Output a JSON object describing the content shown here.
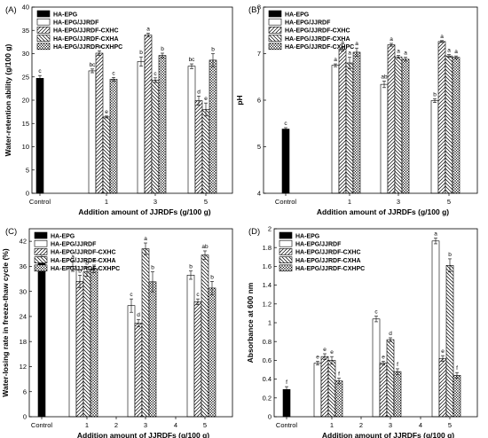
{
  "figure": {
    "panels": [
      {
        "label": "(A)"
      },
      {
        "label": "(B)"
      },
      {
        "label": "(C)"
      },
      {
        "label": "(D)"
      }
    ]
  },
  "chart_data": [
    {
      "panel": "(A)",
      "type": "bar",
      "xlabel": "Addition amount of JJRDFs (g/100 g)",
      "ylabel": "Water-retention ability (g/100 g)",
      "ylim": [
        0,
        40
      ],
      "yticks": [
        0,
        5,
        10,
        15,
        20,
        25,
        30,
        35,
        40
      ],
      "x_ticks": [
        "Control",
        "1",
        "3",
        "5"
      ],
      "legend_position": "top-left",
      "colors": {
        "HA-EPG": "#000000",
        "HA-EPG/JJRDF": "#ffffff"
      },
      "series": [
        {
          "name": "HA-EPG",
          "pattern": "solid",
          "points": [
            {
              "x": "Control",
              "value": 24.7,
              "error": 0.6,
              "label": "c"
            }
          ]
        },
        {
          "name": "HA-EPG/JJRDF",
          "pattern": "empty",
          "points": [
            {
              "x": "1",
              "value": 26.3,
              "error": 0.4,
              "label": "bc"
            },
            {
              "x": "3",
              "value": 28.3,
              "error": 1.0,
              "label": "b"
            },
            {
              "x": "5",
              "value": 27.3,
              "error": 0.5,
              "label": "bc"
            }
          ]
        },
        {
          "name": "HA-EPG/JJRDF-CXHC",
          "pattern": "diag",
          "points": [
            {
              "x": "1",
              "value": 30.1,
              "error": 0.5,
              "label": "b"
            },
            {
              "x": "3",
              "value": 34.0,
              "error": 0.4,
              "label": "a"
            },
            {
              "x": "5",
              "value": 19.9,
              "error": 1.0,
              "label": "d"
            }
          ]
        },
        {
          "name": "HA-EPG/JJRDF-CXHA",
          "pattern": "antidiag",
          "points": [
            {
              "x": "1",
              "value": 16.4,
              "error": 0.2,
              "label": "e"
            },
            {
              "x": "3",
              "value": 24.3,
              "error": 0.5,
              "label": "c"
            },
            {
              "x": "5",
              "value": 18.0,
              "error": 1.4,
              "label": "e"
            }
          ]
        },
        {
          "name": "HA-EPG/JJRDF-CXHPC",
          "pattern": "cross",
          "points": [
            {
              "x": "1",
              "value": 24.5,
              "error": 0.4,
              "label": "c"
            },
            {
              "x": "3",
              "value": 29.6,
              "error": 0.5,
              "label": "b"
            },
            {
              "x": "5",
              "value": 28.6,
              "error": 1.4,
              "label": "b"
            }
          ]
        }
      ]
    },
    {
      "panel": "(B)",
      "type": "bar",
      "xlabel": "Addition amount of JJRDFs (g/100 g)",
      "ylabel": "pH",
      "ylim": [
        4,
        8
      ],
      "yticks": [
        4,
        5,
        6,
        7,
        8
      ],
      "x_ticks": [
        "Control",
        "1",
        "3",
        "5"
      ],
      "legend_position": "top-left",
      "series": [
        {
          "name": "HA-EPG",
          "pattern": "solid",
          "points": [
            {
              "x": "Control",
              "value": 5.38,
              "error": 0.03,
              "label": "c"
            }
          ]
        },
        {
          "name": "HA-EPG/JJRDF",
          "pattern": "empty",
          "points": [
            {
              "x": "1",
              "value": 6.75,
              "error": 0.03,
              "label": "a"
            },
            {
              "x": "3",
              "value": 6.34,
              "error": 0.07,
              "label": "ab"
            },
            {
              "x": "5",
              "value": 5.99,
              "error": 0.04,
              "label": "b"
            }
          ]
        },
        {
          "name": "HA-EPG/JJRDF-CXHC",
          "pattern": "diag",
          "points": [
            {
              "x": "1",
              "value": 7.1,
              "error": 0.04,
              "label": "a"
            },
            {
              "x": "3",
              "value": 7.19,
              "error": 0.03,
              "label": "a"
            },
            {
              "x": "5",
              "value": 7.26,
              "error": 0.02,
              "label": "a"
            }
          ]
        },
        {
          "name": "HA-EPG/JJRDF-CXHA",
          "pattern": "antidiag",
          "points": [
            {
              "x": "1",
              "value": 6.8,
              "error": 0.12,
              "label": "a"
            },
            {
              "x": "3",
              "value": 6.93,
              "error": 0.03,
              "label": "a"
            },
            {
              "x": "5",
              "value": 6.95,
              "error": 0.03,
              "label": "a"
            }
          ]
        },
        {
          "name": "HA-EPG/JJRDF-CXHPC",
          "pattern": "cross",
          "points": [
            {
              "x": "1",
              "value": 7.03,
              "error": 0.09,
              "label": "a"
            },
            {
              "x": "3",
              "value": 6.88,
              "error": 0.04,
              "label": "a"
            },
            {
              "x": "5",
              "value": 6.92,
              "error": 0.03,
              "label": "a"
            }
          ]
        }
      ]
    },
    {
      "panel": "(C)",
      "type": "bar",
      "xlabel": "Addition amount of JJRDFs (g/100 g)",
      "ylabel": "Water-losing rate in freeze-thaw cycle (%)",
      "ylim": [
        0,
        45
      ],
      "yticks": [
        0,
        6,
        12,
        18,
        24,
        30,
        36,
        42
      ],
      "x_ticks": [
        "Control",
        "1",
        "2",
        "3",
        "4",
        "5"
      ],
      "legend_position": "top-left",
      "series": [
        {
          "name": "HA-EPG",
          "pattern": "solid",
          "points": [
            {
              "x": "Control",
              "value": 38.3,
              "error": 0.7,
              "label": "a"
            }
          ]
        },
        {
          "name": "HA-EPG/JJRDF",
          "pattern": "empty",
          "points": [
            {
              "x": "1",
              "value": 36.0,
              "error": 1.2,
              "label": "a"
            },
            {
              "x": "3",
              "value": 26.6,
              "error": 1.6,
              "label": "c"
            },
            {
              "x": "5",
              "value": 33.9,
              "error": 1.0,
              "label": "b"
            }
          ]
        },
        {
          "name": "HA-EPG/JJRDF-CXHC",
          "pattern": "diag",
          "points": [
            {
              "x": "1",
              "value": 32.4,
              "error": 1.5,
              "label": "b"
            },
            {
              "x": "3",
              "value": 22.4,
              "error": 0.9,
              "label": "d"
            },
            {
              "x": "5",
              "value": 27.5,
              "error": 0.7,
              "label": "c"
            }
          ]
        },
        {
          "name": "HA-EPG/JJRDF-CXHA",
          "pattern": "antidiag",
          "points": [
            {
              "x": "1",
              "value": 34.7,
              "error": 1.1,
              "label": "b"
            },
            {
              "x": "3",
              "value": 40.2,
              "error": 1.4,
              "label": "a"
            },
            {
              "x": "5",
              "value": 38.7,
              "error": 1.0,
              "label": "ab"
            }
          ]
        },
        {
          "name": "HA-EPG/JJRDF-CXHPC",
          "pattern": "cross",
          "points": [
            {
              "x": "1",
              "value": 35.4,
              "error": 0.9,
              "label": "a"
            },
            {
              "x": "3",
              "value": 32.3,
              "error": 2.4,
              "label": "b"
            },
            {
              "x": "5",
              "value": 30.8,
              "error": 1.6,
              "label": "b"
            }
          ]
        }
      ]
    },
    {
      "panel": "(D)",
      "type": "bar",
      "xlabel": "Addition amount of JJRDFs (g/100 g)",
      "ylabel": "Absorbance at 600 nm",
      "ylim": [
        0,
        2.0
      ],
      "yticks": [
        0.0,
        0.2,
        0.4,
        0.6,
        0.8,
        1.0,
        1.2,
        1.4,
        1.6,
        1.8,
        2.0
      ],
      "x_ticks": [
        "Control",
        "1",
        "2",
        "3",
        "4",
        "5"
      ],
      "legend_position": "top-left",
      "series": [
        {
          "name": "HA-EPG",
          "pattern": "solid",
          "points": [
            {
              "x": "Control",
              "value": 0.29,
              "error": 0.03,
              "label": "f"
            }
          ]
        },
        {
          "name": "HA-EPG/JJRDF",
          "pattern": "empty",
          "points": [
            {
              "x": "1",
              "value": 0.57,
              "error": 0.02,
              "label": "e"
            },
            {
              "x": "3",
              "value": 1.04,
              "error": 0.03,
              "label": "c"
            },
            {
              "x": "5",
              "value": 1.87,
              "error": 0.03,
              "label": "a"
            }
          ]
        },
        {
          "name": "HA-EPG/JJRDF-CXHC",
          "pattern": "diag",
          "points": [
            {
              "x": "1",
              "value": 0.64,
              "error": 0.03,
              "label": "e"
            },
            {
              "x": "3",
              "value": 0.57,
              "error": 0.02,
              "label": "e"
            },
            {
              "x": "5",
              "value": 0.62,
              "error": 0.03,
              "label": "e"
            }
          ]
        },
        {
          "name": "HA-EPG/JJRDF-CXHA",
          "pattern": "antidiag",
          "points": [
            {
              "x": "1",
              "value": 0.6,
              "error": 0.04,
              "label": "e"
            },
            {
              "x": "3",
              "value": 0.82,
              "error": 0.02,
              "label": "d"
            },
            {
              "x": "5",
              "value": 1.61,
              "error": 0.07,
              "label": "b"
            }
          ]
        },
        {
          "name": "HA-EPG/JJRDF-CXHPC",
          "pattern": "cross",
          "points": [
            {
              "x": "1",
              "value": 0.38,
              "error": 0.03,
              "label": "f"
            },
            {
              "x": "3",
              "value": 0.48,
              "error": 0.03,
              "label": "f"
            },
            {
              "x": "5",
              "value": 0.44,
              "error": 0.03,
              "label": "f"
            }
          ]
        }
      ]
    }
  ]
}
